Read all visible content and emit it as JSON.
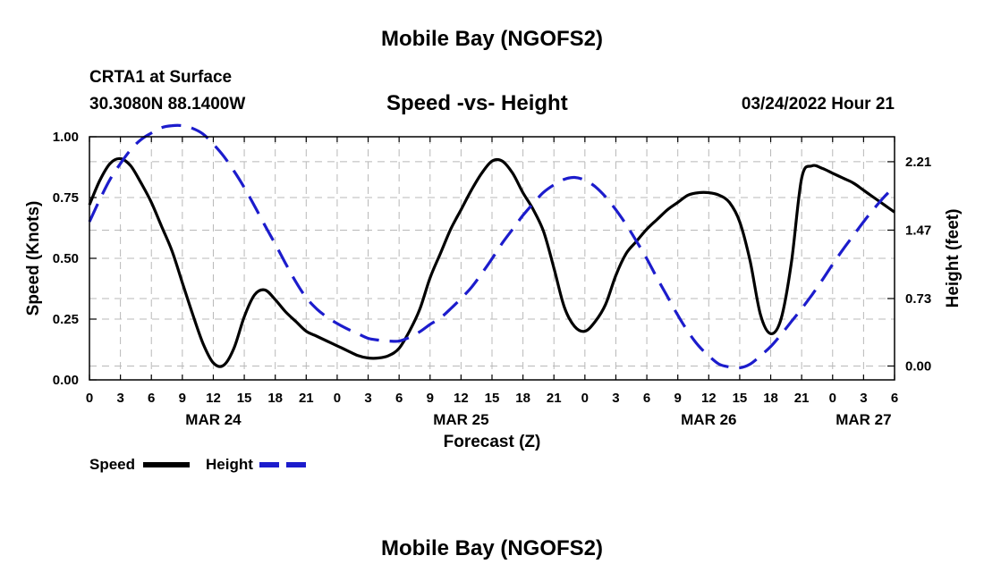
{
  "header": {
    "title": "Mobile Bay (NGOFS2)",
    "station": "CRTA1 at Surface",
    "coords": "30.3080N  88.1400W",
    "subtitle": "Speed -vs- Height",
    "datetime": "03/24/2022 Hour 21",
    "bottom_title": "Mobile Bay (NGOFS2)"
  },
  "chart_data": {
    "type": "line",
    "title": "Speed -vs- Height",
    "xlabel": "Forecast (Z)",
    "ylabel_left": "Speed (Knots)",
    "ylabel_right": "Height (feet)",
    "x_hour_range": [
      0,
      78
    ],
    "x_tick_labels": [
      "0",
      "3",
      "6",
      "9",
      "12",
      "15",
      "18",
      "21",
      "0",
      "3",
      "6",
      "9",
      "12",
      "15",
      "18",
      "21",
      "0",
      "3",
      "6",
      "9",
      "12",
      "15",
      "18",
      "21",
      "0",
      "3",
      "6"
    ],
    "date_labels": [
      {
        "hour": 12,
        "label": "MAR 24"
      },
      {
        "hour": 36,
        "label": "MAR 25"
      },
      {
        "hour": 60,
        "label": "MAR 26"
      },
      {
        "hour": 75,
        "label": "MAR 27"
      }
    ],
    "left_axis": {
      "ylim": [
        0,
        1
      ],
      "ticks": [
        "0.00",
        "0.25",
        "0.50",
        "0.75",
        "1.00"
      ]
    },
    "right_axis": {
      "ylim": [
        -0.15,
        2.48
      ],
      "ticks": [
        "0.00",
        "0.73",
        "1.47",
        "2.21"
      ]
    },
    "grid": true,
    "series": [
      {
        "name": "Speed",
        "axis": "left",
        "color": "#000000",
        "style": "solid",
        "x": [
          0,
          1,
          2,
          3,
          4,
          5,
          6,
          7,
          8,
          9,
          10,
          11,
          12,
          13,
          14,
          15,
          16,
          17,
          18,
          19,
          20,
          21,
          22,
          23,
          24,
          25,
          26,
          27,
          28,
          29,
          30,
          31,
          32,
          33,
          34,
          35,
          36,
          37,
          38,
          39,
          40,
          41,
          42,
          43,
          44,
          45,
          46,
          47,
          48,
          49,
          50,
          51,
          52,
          53,
          54,
          55,
          56,
          57,
          58,
          59,
          60,
          61,
          62,
          63,
          64,
          65,
          66,
          67,
          68,
          69,
          70,
          71,
          72,
          73,
          74,
          75,
          76,
          77,
          78
        ],
        "values": [
          0.72,
          0.82,
          0.89,
          0.91,
          0.88,
          0.81,
          0.73,
          0.63,
          0.53,
          0.4,
          0.27,
          0.15,
          0.07,
          0.06,
          0.13,
          0.26,
          0.35,
          0.37,
          0.33,
          0.28,
          0.24,
          0.2,
          0.18,
          0.16,
          0.14,
          0.12,
          0.1,
          0.09,
          0.09,
          0.1,
          0.13,
          0.2,
          0.29,
          0.42,
          0.52,
          0.62,
          0.7,
          0.78,
          0.85,
          0.9,
          0.9,
          0.85,
          0.77,
          0.7,
          0.61,
          0.46,
          0.3,
          0.22,
          0.2,
          0.24,
          0.31,
          0.43,
          0.52,
          0.57,
          0.62,
          0.66,
          0.7,
          0.73,
          0.76,
          0.77,
          0.77,
          0.76,
          0.73,
          0.65,
          0.49,
          0.27,
          0.19,
          0.25,
          0.48,
          0.83,
          0.88,
          0.87,
          0.85,
          0.83,
          0.81,
          0.78,
          0.75,
          0.72,
          0.69
        ]
      },
      {
        "name": "Height",
        "axis": "right",
        "color": "#1c1ccc",
        "style": "dashed",
        "x": [
          0,
          1,
          2,
          3,
          4,
          5,
          6,
          7,
          8,
          9,
          10,
          11,
          12,
          13,
          14,
          15,
          16,
          17,
          18,
          19,
          20,
          21,
          22,
          23,
          24,
          25,
          26,
          27,
          28,
          29,
          30,
          31,
          32,
          33,
          34,
          35,
          36,
          37,
          38,
          39,
          40,
          41,
          42,
          43,
          44,
          45,
          46,
          47,
          48,
          49,
          50,
          51,
          52,
          53,
          54,
          55,
          56,
          57,
          58,
          59,
          60,
          61,
          62,
          63,
          64,
          65,
          66,
          67,
          68,
          69,
          70,
          71,
          72,
          73,
          74,
          75,
          76,
          77,
          78
        ],
        "values": [
          1.56,
          1.8,
          2.02,
          2.19,
          2.34,
          2.45,
          2.52,
          2.58,
          2.6,
          2.6,
          2.57,
          2.51,
          2.4,
          2.27,
          2.11,
          1.93,
          1.73,
          1.52,
          1.32,
          1.11,
          0.91,
          0.74,
          0.62,
          0.53,
          0.46,
          0.4,
          0.35,
          0.3,
          0.28,
          0.27,
          0.27,
          0.31,
          0.37,
          0.45,
          0.52,
          0.62,
          0.73,
          0.85,
          1.0,
          1.16,
          1.33,
          1.48,
          1.63,
          1.76,
          1.88,
          1.96,
          2.02,
          2.04,
          2.01,
          1.94,
          1.83,
          1.69,
          1.53,
          1.35,
          1.16,
          0.95,
          0.75,
          0.55,
          0.37,
          0.22,
          0.11,
          0.02,
          -0.01,
          -0.02,
          0.02,
          0.11,
          0.21,
          0.34,
          0.48,
          0.62,
          0.77,
          0.93,
          1.1,
          1.26,
          1.41,
          1.56,
          1.7,
          1.83,
          1.94
        ]
      }
    ],
    "legend": {
      "placement": "bottom-left",
      "entries": [
        "Speed",
        "Height"
      ]
    }
  }
}
